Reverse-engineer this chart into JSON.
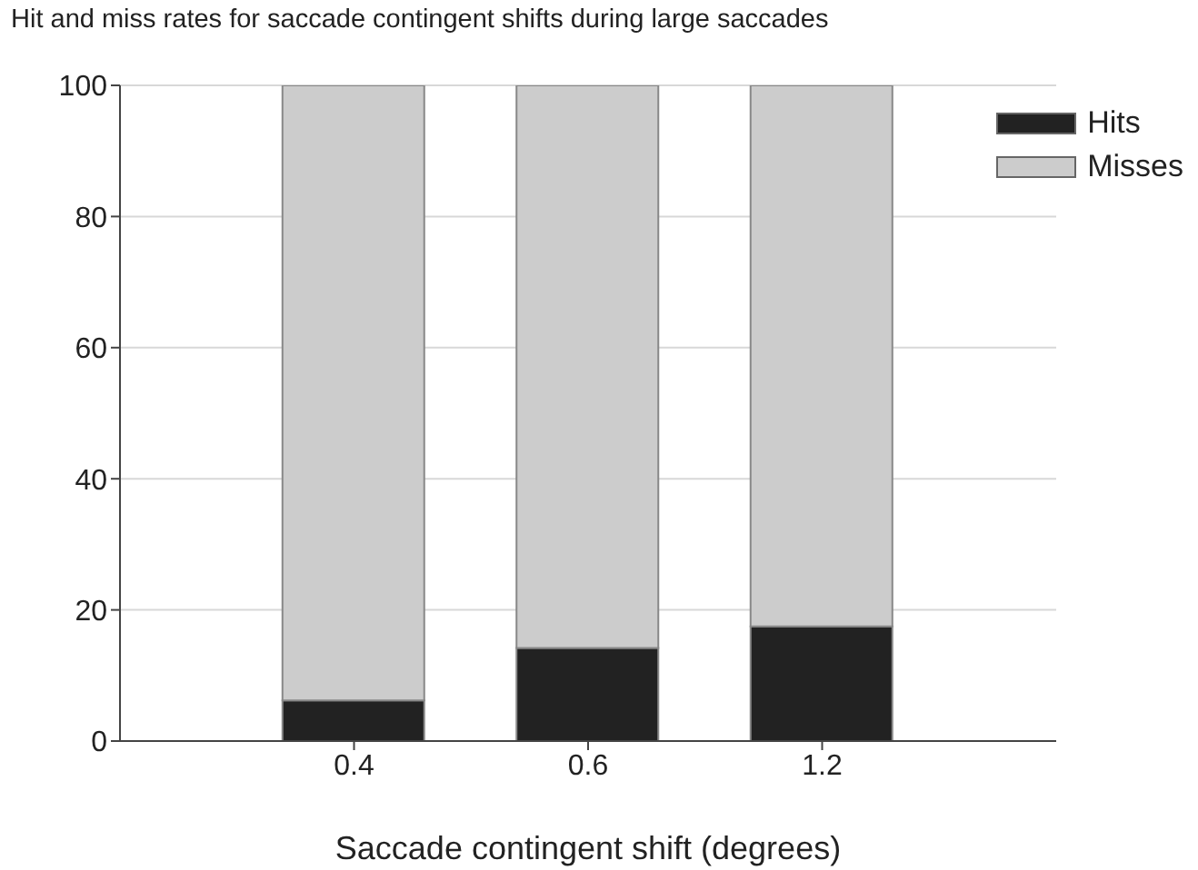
{
  "chart_data": {
    "type": "bar",
    "title": "Hit and miss rates for saccade contingent shifts during large saccades",
    "xlabel": "Saccade contingent shift (degrees)",
    "categories": [
      "0.4",
      "0.6",
      "1.2"
    ],
    "stacked": true,
    "series": [
      {
        "name": "Hits",
        "color": "#222222",
        "values": [
          6.2,
          14.2,
          17.5
        ]
      },
      {
        "name": "Misses",
        "color": "#cccccc",
        "values": [
          93.8,
          85.8,
          82.5
        ]
      }
    ],
    "ylim": [
      0,
      100
    ],
    "yticks": [
      0,
      20,
      40,
      60,
      80,
      100
    ],
    "grid": "y",
    "legend": "top right"
  }
}
